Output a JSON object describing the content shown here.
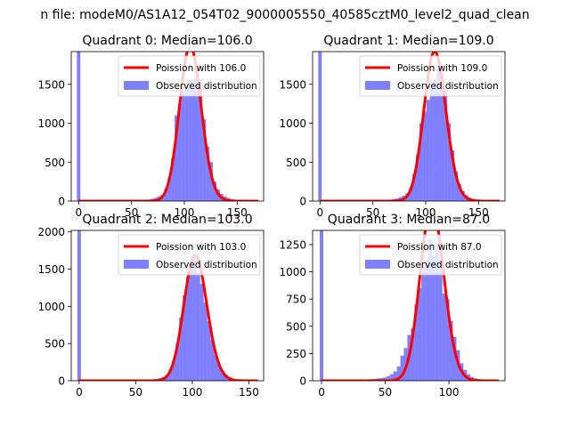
{
  "figure": {
    "suptitle": "n file: modeM0/AS1A12_054T02_9000005550_40585cztM0_level2_quad_clean"
  },
  "colors": {
    "observed": "#0000ff",
    "observed_alpha": 0.5,
    "poisson": "#ff0000",
    "background": "#ffffff",
    "axis": "#000000"
  },
  "chart_data": [
    {
      "type": "bar",
      "title": "Quadrant 0: Median=106.0",
      "xlim": [
        -7,
        175
      ],
      "ylim": [
        0,
        1920
      ],
      "xticks": [
        0,
        50,
        100,
        150
      ],
      "yticks": [
        0,
        500,
        1000,
        1500
      ],
      "legend": {
        "placement": "top-right",
        "entries": [
          "Poission with 106.0",
          "Observed distribution"
        ]
      },
      "poisson_mean": 106.0,
      "observed": {
        "bin_width": 3.3,
        "bins": [
          [
            0,
            1920
          ],
          [
            3.3,
            4
          ],
          [
            6.6,
            3
          ],
          [
            9.9,
            3
          ],
          [
            13.2,
            2
          ],
          [
            16.5,
            2
          ],
          [
            19.8,
            2
          ],
          [
            23.1,
            2
          ],
          [
            26.4,
            2
          ],
          [
            29.7,
            2
          ],
          [
            33,
            2
          ],
          [
            36.3,
            3
          ],
          [
            39.6,
            3
          ],
          [
            42.9,
            3
          ],
          [
            46.2,
            4
          ],
          [
            49.5,
            5
          ],
          [
            52.8,
            6
          ],
          [
            56.1,
            8
          ],
          [
            59.4,
            10
          ],
          [
            62.7,
            14
          ],
          [
            66,
            18
          ],
          [
            69.3,
            28
          ],
          [
            72.6,
            40
          ],
          [
            75.9,
            60
          ],
          [
            79.2,
            80
          ],
          [
            82.5,
            150
          ],
          [
            85.8,
            300
          ],
          [
            89.1,
            550
          ],
          [
            92.4,
            1100
          ],
          [
            95.7,
            1250
          ],
          [
            99,
            1400
          ],
          [
            102.3,
            1450
          ],
          [
            105.6,
            1550
          ],
          [
            108.9,
            1570
          ],
          [
            112.2,
            1600
          ],
          [
            115.5,
            1450
          ],
          [
            118.8,
            1050
          ],
          [
            122.1,
            700
          ],
          [
            125.4,
            500
          ],
          [
            128.7,
            250
          ],
          [
            132,
            150
          ],
          [
            135.3,
            90
          ],
          [
            138.6,
            60
          ],
          [
            141.9,
            40
          ],
          [
            145.2,
            25
          ],
          [
            148.5,
            15
          ],
          [
            151.8,
            10
          ],
          [
            155.1,
            6
          ],
          [
            158.4,
            4
          ],
          [
            161.7,
            2
          ]
        ]
      }
    },
    {
      "type": "bar",
      "title": "Quadrant 1: Median=109.0",
      "xlim": [
        -7,
        175
      ],
      "ylim": [
        0,
        1920
      ],
      "xticks": [
        0,
        50,
        100,
        150
      ],
      "yticks": [
        0,
        500,
        1000,
        1500
      ],
      "legend": {
        "placement": "top-right",
        "entries": [
          "Poission with 109.0",
          "Observed distribution"
        ]
      },
      "poisson_mean": 109.0,
      "observed": {
        "bin_width": 3.3,
        "bins": [
          [
            0,
            1920
          ],
          [
            3.3,
            4
          ],
          [
            6.6,
            3
          ],
          [
            9.9,
            3
          ],
          [
            13.2,
            2
          ],
          [
            16.5,
            2
          ],
          [
            19.8,
            2
          ],
          [
            23.1,
            2
          ],
          [
            26.4,
            2
          ],
          [
            29.7,
            2
          ],
          [
            33,
            2
          ],
          [
            36.3,
            3
          ],
          [
            39.6,
            3
          ],
          [
            42.9,
            3
          ],
          [
            46.2,
            4
          ],
          [
            49.5,
            5
          ],
          [
            52.8,
            6
          ],
          [
            56.1,
            8
          ],
          [
            59.4,
            10
          ],
          [
            62.7,
            14
          ],
          [
            66,
            18
          ],
          [
            69.3,
            24
          ],
          [
            72.6,
            32
          ],
          [
            75.9,
            50
          ],
          [
            79.2,
            70
          ],
          [
            82.5,
            100
          ],
          [
            85.8,
            160
          ],
          [
            89.1,
            350
          ],
          [
            92.4,
            600
          ],
          [
            95.7,
            1000
          ],
          [
            99,
            1150
          ],
          [
            102.3,
            1300
          ],
          [
            105.6,
            1450
          ],
          [
            108.9,
            1550
          ],
          [
            112.2,
            1700
          ],
          [
            115.5,
            1650
          ],
          [
            118.8,
            1400
          ],
          [
            122.1,
            1000
          ],
          [
            125.4,
            650
          ],
          [
            128.7,
            380
          ],
          [
            132,
            220
          ],
          [
            135.3,
            130
          ],
          [
            138.6,
            75
          ],
          [
            141.9,
            45
          ],
          [
            145.2,
            30
          ],
          [
            148.5,
            20
          ],
          [
            151.8,
            12
          ],
          [
            155.1,
            8
          ],
          [
            158.4,
            5
          ],
          [
            161.7,
            3
          ]
        ]
      }
    },
    {
      "type": "bar",
      "title": "Quadrant 2: Median=103.0",
      "xlim": [
        -7,
        163
      ],
      "ylim": [
        0,
        2020
      ],
      "xticks": [
        0,
        50,
        100,
        150
      ],
      "yticks": [
        0,
        500,
        1000,
        1500,
        2000
      ],
      "legend": {
        "placement": "top-right",
        "entries": [
          "Poission with 103.0",
          "Observed distribution"
        ]
      },
      "poisson_mean": 103.0,
      "observed": {
        "bin_width": 3.1,
        "bins": [
          [
            0,
            2020
          ],
          [
            3.1,
            4
          ],
          [
            6.2,
            3
          ],
          [
            9.3,
            3
          ],
          [
            12.4,
            2
          ],
          [
            15.5,
            2
          ],
          [
            18.6,
            2
          ],
          [
            21.7,
            2
          ],
          [
            24.8,
            2
          ],
          [
            27.9,
            2
          ],
          [
            31,
            2
          ],
          [
            34.1,
            3
          ],
          [
            37.2,
            3
          ],
          [
            40.3,
            3
          ],
          [
            43.4,
            4
          ],
          [
            46.5,
            5
          ],
          [
            49.6,
            6
          ],
          [
            52.7,
            8
          ],
          [
            55.8,
            10
          ],
          [
            58.9,
            12
          ],
          [
            62,
            14
          ],
          [
            65.1,
            18
          ],
          [
            68.2,
            24
          ],
          [
            71.3,
            34
          ],
          [
            74.4,
            50
          ],
          [
            77.5,
            80
          ],
          [
            80.6,
            150
          ],
          [
            83.7,
            280
          ],
          [
            86.8,
            500
          ],
          [
            89.9,
            850
          ],
          [
            93,
            1150
          ],
          [
            96.1,
            1400
          ],
          [
            99.2,
            1550
          ],
          [
            102.3,
            1600
          ],
          [
            105.4,
            1450
          ],
          [
            108.5,
            1300
          ],
          [
            111.6,
            1050
          ],
          [
            114.7,
            800
          ],
          [
            117.8,
            550
          ],
          [
            120.9,
            350
          ],
          [
            124,
            220
          ],
          [
            127.1,
            130
          ],
          [
            130.2,
            80
          ],
          [
            133.3,
            50
          ],
          [
            136.4,
            30
          ],
          [
            139.5,
            18
          ],
          [
            142.6,
            10
          ],
          [
            145.7,
            6
          ],
          [
            148.8,
            4
          ],
          [
            151.9,
            2
          ]
        ]
      }
    },
    {
      "type": "bar",
      "title": "Quadrant 3: Median=87.0",
      "xlim": [
        -7,
        144
      ],
      "ylim": [
        0,
        1380
      ],
      "xticks": [
        0,
        50,
        100
      ],
      "yticks": [
        0,
        250,
        500,
        750,
        1000,
        1250
      ],
      "legend": {
        "placement": "top-right",
        "entries": [
          "Poission with 87.0",
          "Observed distribution"
        ]
      },
      "poisson_mean": 87.0,
      "observed": {
        "bin_width": 2.75,
        "bins": [
          [
            0,
            1380
          ],
          [
            2.75,
            10
          ],
          [
            5.5,
            8
          ],
          [
            8.25,
            7
          ],
          [
            11,
            6
          ],
          [
            13.75,
            6
          ],
          [
            16.5,
            5
          ],
          [
            19.25,
            5
          ],
          [
            22,
            5
          ],
          [
            24.75,
            6
          ],
          [
            27.5,
            6
          ],
          [
            30.25,
            8
          ],
          [
            33,
            10
          ],
          [
            35.75,
            12
          ],
          [
            38.5,
            14
          ],
          [
            41.25,
            16
          ],
          [
            44,
            20
          ],
          [
            46.75,
            24
          ],
          [
            49.5,
            30
          ],
          [
            52.25,
            40
          ],
          [
            55,
            60
          ],
          [
            57.75,
            85
          ],
          [
            60.5,
            130
          ],
          [
            63.25,
            230
          ],
          [
            66,
            300
          ],
          [
            68.75,
            420
          ],
          [
            71.5,
            480
          ],
          [
            74.25,
            700
          ],
          [
            77,
            850
          ],
          [
            79.75,
            1050
          ],
          [
            82.5,
            1100
          ],
          [
            85.25,
            1300
          ],
          [
            88,
            1150
          ],
          [
            90.75,
            1250
          ],
          [
            93.5,
            1100
          ],
          [
            96.25,
            800
          ],
          [
            99,
            750
          ],
          [
            101.75,
            550
          ],
          [
            104.5,
            400
          ],
          [
            107.25,
            280
          ],
          [
            110,
            160
          ],
          [
            112.75,
            100
          ],
          [
            115.5,
            60
          ],
          [
            118.25,
            35
          ],
          [
            121,
            22
          ],
          [
            123.75,
            14
          ],
          [
            126.5,
            8
          ],
          [
            129.25,
            5
          ],
          [
            132,
            3
          ]
        ]
      }
    }
  ]
}
